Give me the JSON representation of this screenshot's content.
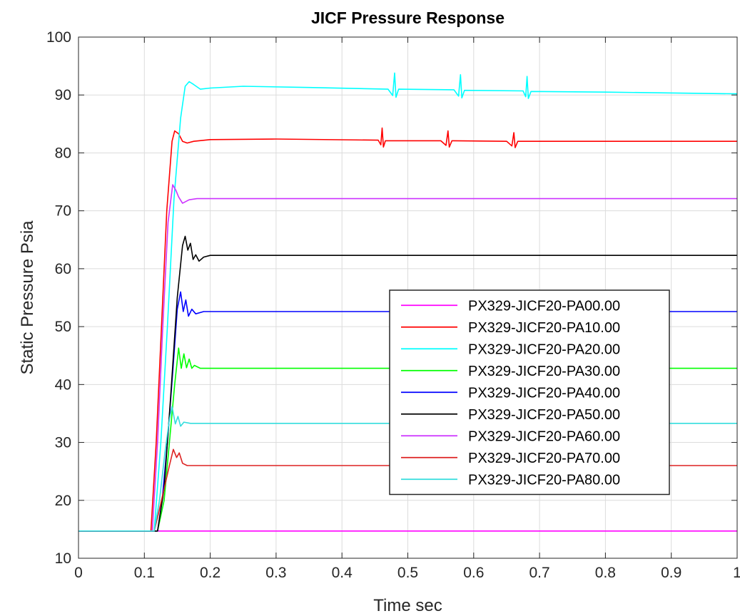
{
  "chart_data": {
    "type": "line",
    "title": "JICF Pressure Response",
    "xlabel": "Time sec",
    "ylabel": "Static Pressure Psia",
    "xlim": [
      0,
      1
    ],
    "ylim": [
      10,
      100
    ],
    "xticks": [
      "0",
      "0.1",
      "0.2",
      "0.3",
      "0.4",
      "0.5",
      "0.6",
      "0.7",
      "0.8",
      "0.9",
      "1"
    ],
    "yticks": [
      "10",
      "20",
      "30",
      "40",
      "50",
      "60",
      "70",
      "80",
      "90",
      "100"
    ],
    "grid": true,
    "legend_position": "lower-right",
    "series": [
      {
        "name": "PX329-JICF20-PA00.00",
        "color": "#ff00ff",
        "points": [
          [
            0,
            14.7
          ],
          [
            1,
            14.7
          ]
        ]
      },
      {
        "name": "PX329-JICF20-PA10.00",
        "color": "#ff0000",
        "points": [
          [
            0,
            14.7
          ],
          [
            0.11,
            14.7
          ],
          [
            0.118,
            30
          ],
          [
            0.126,
            50
          ],
          [
            0.134,
            70
          ],
          [
            0.142,
            82
          ],
          [
            0.146,
            83.8
          ],
          [
            0.152,
            83.3
          ],
          [
            0.158,
            82.0
          ],
          [
            0.165,
            81.7
          ],
          [
            0.175,
            82.0
          ],
          [
            0.2,
            82.3
          ],
          [
            0.3,
            82.4
          ],
          [
            0.455,
            82.2
          ],
          [
            0.459,
            81.4
          ],
          [
            0.461,
            84.3
          ],
          [
            0.463,
            81.0
          ],
          [
            0.466,
            82.1
          ],
          [
            0.55,
            82.1
          ],
          [
            0.558,
            81.3
          ],
          [
            0.561,
            83.8
          ],
          [
            0.563,
            81.0
          ],
          [
            0.567,
            82.1
          ],
          [
            0.65,
            82.0
          ],
          [
            0.658,
            81.2
          ],
          [
            0.661,
            83.5
          ],
          [
            0.663,
            80.9
          ],
          [
            0.667,
            82.0
          ],
          [
            1,
            82.0
          ]
        ]
      },
      {
        "name": "PX329-JICF20-PA20.00",
        "color": "#00ffff",
        "points": [
          [
            0,
            14.7
          ],
          [
            0.115,
            14.7
          ],
          [
            0.125,
            30
          ],
          [
            0.135,
            50
          ],
          [
            0.145,
            72
          ],
          [
            0.155,
            86
          ],
          [
            0.162,
            91.5
          ],
          [
            0.168,
            92.3
          ],
          [
            0.175,
            91.8
          ],
          [
            0.185,
            91.0
          ],
          [
            0.2,
            91.2
          ],
          [
            0.25,
            91.5
          ],
          [
            0.35,
            91.3
          ],
          [
            0.47,
            91.0
          ],
          [
            0.477,
            89.9
          ],
          [
            0.48,
            93.8
          ],
          [
            0.482,
            89.6
          ],
          [
            0.486,
            91.0
          ],
          [
            0.57,
            90.9
          ],
          [
            0.577,
            89.8
          ],
          [
            0.58,
            93.5
          ],
          [
            0.582,
            89.5
          ],
          [
            0.586,
            90.8
          ],
          [
            0.675,
            90.7
          ],
          [
            0.679,
            89.7
          ],
          [
            0.681,
            93.2
          ],
          [
            0.683,
            89.4
          ],
          [
            0.687,
            90.6
          ],
          [
            0.8,
            90.5
          ],
          [
            1,
            90.2
          ]
        ]
      },
      {
        "name": "PX329-JICF20-PA30.00",
        "color": "#00ff00",
        "points": [
          [
            0,
            14.7
          ],
          [
            0.12,
            14.7
          ],
          [
            0.13,
            20
          ],
          [
            0.138,
            30
          ],
          [
            0.146,
            40
          ],
          [
            0.152,
            46.3
          ],
          [
            0.156,
            42.8
          ],
          [
            0.16,
            45.3
          ],
          [
            0.164,
            42.9
          ],
          [
            0.168,
            44.4
          ],
          [
            0.172,
            42.8
          ],
          [
            0.176,
            43.3
          ],
          [
            0.185,
            42.8
          ],
          [
            1,
            42.8
          ]
        ]
      },
      {
        "name": "PX329-JICF20-PA40.00",
        "color": "#0000ff",
        "points": [
          [
            0,
            14.7
          ],
          [
            0.12,
            14.7
          ],
          [
            0.127,
            20
          ],
          [
            0.135,
            30
          ],
          [
            0.143,
            42
          ],
          [
            0.15,
            53
          ],
          [
            0.155,
            56.0
          ],
          [
            0.159,
            52.6
          ],
          [
            0.163,
            54.6
          ],
          [
            0.167,
            51.8
          ],
          [
            0.172,
            53.0
          ],
          [
            0.178,
            52.2
          ],
          [
            0.19,
            52.6
          ],
          [
            1,
            52.6
          ]
        ]
      },
      {
        "name": "PX329-JICF20-PA50.00",
        "color": "#000000",
        "points": [
          [
            0,
            14.7
          ],
          [
            0.12,
            14.7
          ],
          [
            0.13,
            22
          ],
          [
            0.14,
            38
          ],
          [
            0.15,
            55
          ],
          [
            0.158,
            64
          ],
          [
            0.162,
            65.6
          ],
          [
            0.166,
            63.2
          ],
          [
            0.17,
            64.4
          ],
          [
            0.174,
            61.6
          ],
          [
            0.178,
            62.4
          ],
          [
            0.183,
            61.3
          ],
          [
            0.19,
            62.0
          ],
          [
            0.2,
            62.3
          ],
          [
            1,
            62.3
          ]
        ]
      },
      {
        "name": "PX329-JICF20-PA60.00",
        "color": "#cc33ff",
        "points": [
          [
            0,
            14.7
          ],
          [
            0.112,
            14.7
          ],
          [
            0.12,
            30
          ],
          [
            0.128,
            50
          ],
          [
            0.136,
            68
          ],
          [
            0.143,
            74.5
          ],
          [
            0.148,
            73.5
          ],
          [
            0.152,
            72.4
          ],
          [
            0.158,
            71.3
          ],
          [
            0.168,
            71.9
          ],
          [
            0.18,
            72.1
          ],
          [
            1,
            72.1
          ]
        ]
      },
      {
        "name": "PX329-JICF20-PA70.00",
        "color": "#dd2222",
        "points": [
          [
            0,
            14.7
          ],
          [
            0.115,
            14.7
          ],
          [
            0.122,
            18
          ],
          [
            0.13,
            22
          ],
          [
            0.138,
            26
          ],
          [
            0.144,
            28.8
          ],
          [
            0.149,
            27.4
          ],
          [
            0.153,
            28.2
          ],
          [
            0.158,
            26.4
          ],
          [
            0.165,
            26.0
          ],
          [
            0.18,
            26.0
          ],
          [
            1,
            26.0
          ]
        ]
      },
      {
        "name": "PX329-JICF20-PA80.00",
        "color": "#33dddd",
        "points": [
          [
            0,
            14.7
          ],
          [
            0.115,
            14.7
          ],
          [
            0.123,
            20
          ],
          [
            0.131,
            28
          ],
          [
            0.138,
            34
          ],
          [
            0.142,
            36.2
          ],
          [
            0.147,
            33.2
          ],
          [
            0.151,
            34.5
          ],
          [
            0.155,
            32.8
          ],
          [
            0.16,
            33.5
          ],
          [
            0.17,
            33.3
          ],
          [
            1,
            33.3
          ]
        ]
      }
    ]
  }
}
